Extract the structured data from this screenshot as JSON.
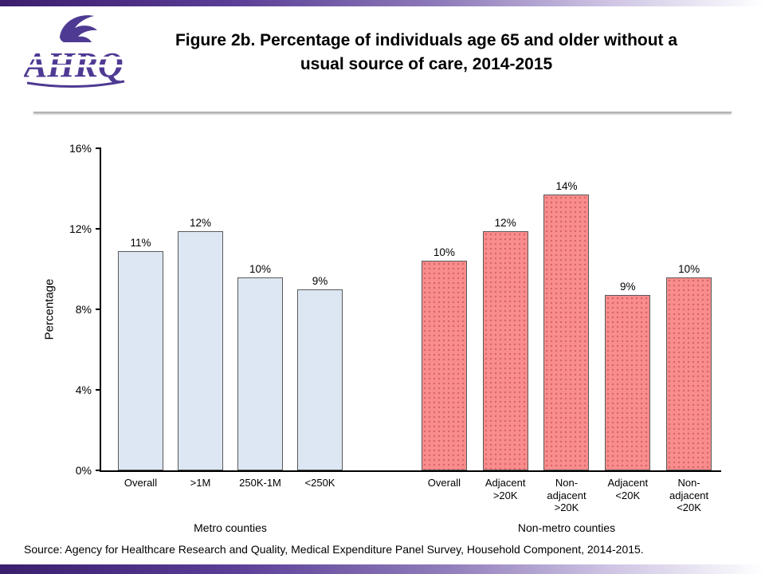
{
  "page": {
    "logo_text": "AHRQ",
    "title": "Figure 2b. Percentage of individuals age 65 and older without a\nusual source of care, 2014-2015",
    "source": "Source: Agency for Healthcare Research and Quality, Medical Expenditure Panel Survey, Household Component, 2014-2015.",
    "colors": {
      "accent_purple": "#4f3a93"
    }
  },
  "chart_data": {
    "type": "bar",
    "title": "Figure 2b. Percentage of individuals age 65 and older without a usual source of care, 2014-2015",
    "xlabel": "",
    "ylabel": "Percentage",
    "ylim": [
      0,
      16
    ],
    "yticks": [
      "0%",
      "4%",
      "8%",
      "12%",
      "16%"
    ],
    "ytick_values": [
      0,
      4,
      8,
      12,
      16
    ],
    "grid": false,
    "legend": false,
    "bar_border_color": "#595959",
    "groups": [
      {
        "label": "Metro counties",
        "color": "#dde7f3",
        "pattern": "solid",
        "bars": [
          {
            "category": "Overall",
            "value": 10.9,
            "label": "11%"
          },
          {
            "category": ">1M",
            "value": 11.9,
            "label": "12%"
          },
          {
            "category": "250K-1M",
            "value": 9.6,
            "label": "10%"
          },
          {
            "category": "<250K",
            "value": 9.0,
            "label": "9%"
          }
        ]
      },
      {
        "label": "Non-metro counties",
        "color": "#f98c8c",
        "pattern": "dotted",
        "bars": [
          {
            "category": "Overall",
            "value": 10.4,
            "label": "10%"
          },
          {
            "category": "Adjacent\n>20K",
            "value": 11.9,
            "label": "12%"
          },
          {
            "category": "Non-\nadjacent\n>20K",
            "value": 13.7,
            "label": "14%"
          },
          {
            "category": "Adjacent\n<20K",
            "value": 8.7,
            "label": "9%"
          },
          {
            "category": "Non-\nadjacent\n<20K",
            "value": 9.6,
            "label": "10%"
          }
        ]
      }
    ]
  }
}
